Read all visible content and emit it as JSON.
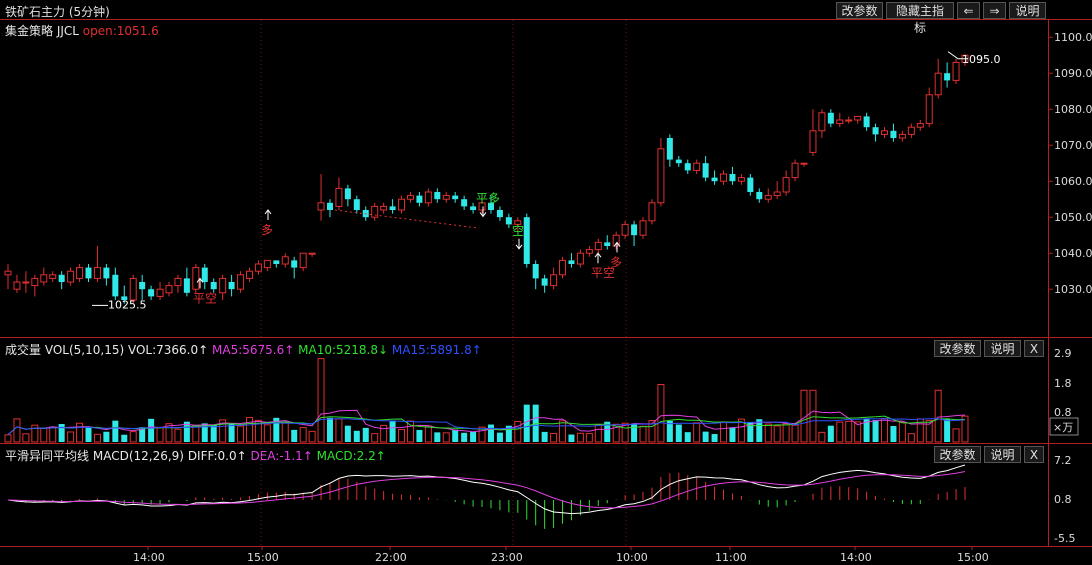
{
  "window": {
    "title": "铁矿石主力 (5分钟)"
  },
  "toolbar": {
    "params": "改参数",
    "hide_indicator": "隐藏主指标",
    "prev": "⇐",
    "next": "⇒",
    "help": "说明"
  },
  "main_panel": {
    "strategy": "集金策略 JJCL",
    "open_label": "open:1051.6",
    "price_axis": [
      "1100.0",
      "1090.0",
      "1080.0",
      "1070.0",
      "1060.0",
      "1050.0",
      "1040.0",
      "1030.0"
    ],
    "last_price": "1095.0",
    "low_marker": "1025.5",
    "signals": [
      {
        "text": "平空",
        "color": "#e03030"
      },
      {
        "text": "多",
        "color": "#e03030"
      },
      {
        "text": "平多",
        "color": "#30e030"
      },
      {
        "text": "空",
        "color": "#30e030"
      },
      {
        "text": "平空",
        "color": "#e03030"
      },
      {
        "text": "多",
        "color": "#e03030"
      }
    ]
  },
  "volume_panel": {
    "label": "成交量",
    "params": "VOL(5,10,15)",
    "vol": "VOL:7366.0↑",
    "ma5": "MA5:5675.6↑",
    "ma10": "MA10:5218.8↓",
    "ma15": "MA15:5891.8↑",
    "axis": [
      "2.9",
      "1.8",
      "0.8"
    ],
    "unit": "×万",
    "buttons": {
      "params": "改参数",
      "help": "说明",
      "close": "X"
    }
  },
  "macd_panel": {
    "label": "平滑异同平均线",
    "params": "MACD(12,26,9)",
    "diff": "DIFF:0.0↑",
    "dea": "DEA:-1.1↑",
    "macd": "MACD:2.2↑",
    "axis": [
      "7.2",
      "0.8",
      "-5.5"
    ],
    "buttons": {
      "params": "改参数",
      "help": "说明",
      "close": "X"
    }
  },
  "time_axis": [
    "14:00",
    "15:00",
    "22:00",
    "23:00",
    "10:00",
    "11:00",
    "14:00",
    "15:00"
  ],
  "colors": {
    "up": "#e03030",
    "down": "#30e8e8",
    "ma5": "#e040e0",
    "ma10": "#30e030",
    "ma15": "#3050ff",
    "diff": "#ffffff",
    "dea": "#e040e0"
  },
  "chart_data": {
    "type": "candlestick",
    "y_range": [
      1022,
      1102
    ],
    "candles": [
      [
        1034,
        1035,
        1030,
        1037
      ],
      [
        1030,
        1032,
        1029,
        1034
      ],
      [
        1032,
        1032,
        1029,
        1035
      ],
      [
        1031,
        1033,
        1028,
        1034
      ],
      [
        1032,
        1034,
        1031,
        1036
      ],
      [
        1033,
        1034,
        1032,
        1035
      ],
      [
        1034,
        1032,
        1030,
        1035
      ],
      [
        1032,
        1035,
        1031,
        1036
      ],
      [
        1033,
        1036,
        1032,
        1037
      ],
      [
        1036,
        1033,
        1032,
        1037
      ],
      [
        1033,
        1036,
        1032,
        1042
      ],
      [
        1036,
        1033,
        1031,
        1037
      ],
      [
        1034,
        1028,
        1027,
        1036
      ],
      [
        1028,
        1027,
        1026,
        1031
      ],
      [
        1027,
        1033,
        1026,
        1034
      ],
      [
        1032,
        1030,
        1027,
        1034
      ],
      [
        1030,
        1028,
        1027,
        1031
      ],
      [
        1028,
        1030,
        1027,
        1032
      ],
      [
        1029,
        1031,
        1028,
        1032
      ],
      [
        1031,
        1033,
        1029,
        1034
      ],
      [
        1033,
        1029,
        1028,
        1036
      ],
      [
        1030,
        1036,
        1029,
        1037
      ],
      [
        1036,
        1032,
        1030,
        1037
      ],
      [
        1032,
        1030,
        1029,
        1033
      ],
      [
        1029,
        1033,
        1027,
        1034
      ],
      [
        1032,
        1030,
        1028,
        1034
      ],
      [
        1030,
        1034,
        1029,
        1035
      ],
      [
        1033,
        1035,
        1032,
        1036
      ],
      [
        1035,
        1037,
        1034,
        1038
      ],
      [
        1036,
        1038,
        1035,
        1038
      ],
      [
        1038,
        1037,
        1036,
        1038
      ],
      [
        1037,
        1039,
        1036,
        1040
      ],
      [
        1038,
        1036,
        1033,
        1039
      ],
      [
        1036,
        1040,
        1035,
        1040
      ],
      [
        1040,
        1040,
        1039,
        1040
      ],
      [
        1052,
        1054,
        1049,
        1062
      ],
      [
        1054,
        1052,
        1050,
        1055
      ],
      [
        1053,
        1058,
        1052,
        1061
      ],
      [
        1058,
        1055,
        1053,
        1059
      ],
      [
        1055,
        1052,
        1051,
        1056
      ],
      [
        1052,
        1050,
        1049,
        1053
      ],
      [
        1050,
        1053,
        1049,
        1054
      ],
      [
        1052,
        1053,
        1051,
        1054
      ],
      [
        1053,
        1052,
        1051,
        1055
      ],
      [
        1052,
        1055,
        1051,
        1056
      ],
      [
        1055,
        1056,
        1054,
        1057
      ],
      [
        1056,
        1054,
        1053,
        1057
      ],
      [
        1054,
        1057,
        1053,
        1058
      ],
      [
        1057,
        1055,
        1054,
        1058
      ],
      [
        1055,
        1056,
        1054,
        1057
      ],
      [
        1056,
        1055,
        1054,
        1057
      ],
      [
        1055,
        1053,
        1052,
        1056
      ],
      [
        1053,
        1052,
        1051,
        1054
      ],
      [
        1052,
        1054,
        1051,
        1055
      ],
      [
        1054,
        1052,
        1051,
        1056
      ],
      [
        1052,
        1050,
        1049,
        1053
      ],
      [
        1050,
        1048,
        1047,
        1051
      ],
      [
        1048,
        1049,
        1046,
        1050
      ],
      [
        1050,
        1037,
        1036,
        1051
      ],
      [
        1037,
        1033,
        1030,
        1038
      ],
      [
        1033,
        1031,
        1029,
        1034
      ],
      [
        1031,
        1034,
        1030,
        1036
      ],
      [
        1034,
        1038,
        1033,
        1039
      ],
      [
        1038,
        1037,
        1036,
        1040
      ],
      [
        1037,
        1040,
        1036,
        1041
      ],
      [
        1040,
        1041,
        1039,
        1042
      ],
      [
        1041,
        1043,
        1040,
        1044
      ],
      [
        1043,
        1042,
        1041,
        1045
      ],
      [
        1042,
        1045,
        1041,
        1046
      ],
      [
        1045,
        1048,
        1044,
        1049
      ],
      [
        1048,
        1045,
        1042,
        1049
      ],
      [
        1045,
        1049,
        1044,
        1050
      ],
      [
        1049,
        1054,
        1048,
        1055
      ],
      [
        1054,
        1069,
        1053,
        1072
      ],
      [
        1072,
        1066,
        1064,
        1073
      ],
      [
        1066,
        1065,
        1064,
        1067
      ],
      [
        1065,
        1063,
        1062,
        1066
      ],
      [
        1063,
        1065,
        1062,
        1066
      ],
      [
        1065,
        1061,
        1060,
        1067
      ],
      [
        1061,
        1060,
        1059,
        1063
      ],
      [
        1060,
        1062,
        1059,
        1063
      ],
      [
        1062,
        1060,
        1059,
        1064
      ],
      [
        1060,
        1061,
        1059,
        1062
      ],
      [
        1061,
        1057,
        1056,
        1062
      ],
      [
        1057,
        1055,
        1054,
        1058
      ],
      [
        1055,
        1056,
        1054,
        1058
      ],
      [
        1056,
        1057,
        1055,
        1060
      ],
      [
        1057,
        1061,
        1056,
        1063
      ],
      [
        1061,
        1065,
        1060,
        1066
      ],
      [
        1065,
        1065,
        1064,
        1065
      ],
      [
        1068,
        1074,
        1067,
        1080
      ],
      [
        1074,
        1079,
        1072,
        1080
      ],
      [
        1079,
        1076,
        1075,
        1080
      ],
      [
        1076,
        1077,
        1075,
        1079
      ],
      [
        1077,
        1077,
        1076,
        1078
      ],
      [
        1077,
        1078,
        1076,
        1078
      ],
      [
        1078,
        1075,
        1074,
        1079
      ],
      [
        1075,
        1073,
        1071,
        1076
      ],
      [
        1073,
        1074,
        1072,
        1075
      ],
      [
        1074,
        1072,
        1071,
        1076
      ],
      [
        1072,
        1073,
        1071,
        1074
      ],
      [
        1073,
        1075,
        1072,
        1076
      ],
      [
        1075,
        1076,
        1074,
        1077
      ],
      [
        1076,
        1084,
        1075,
        1086
      ],
      [
        1084,
        1090,
        1083,
        1094
      ],
      [
        1090,
        1088,
        1086,
        1093
      ],
      [
        1088,
        1093,
        1087,
        1094
      ],
      [
        1093,
        1095,
        1092,
        1095
      ]
    ]
  }
}
